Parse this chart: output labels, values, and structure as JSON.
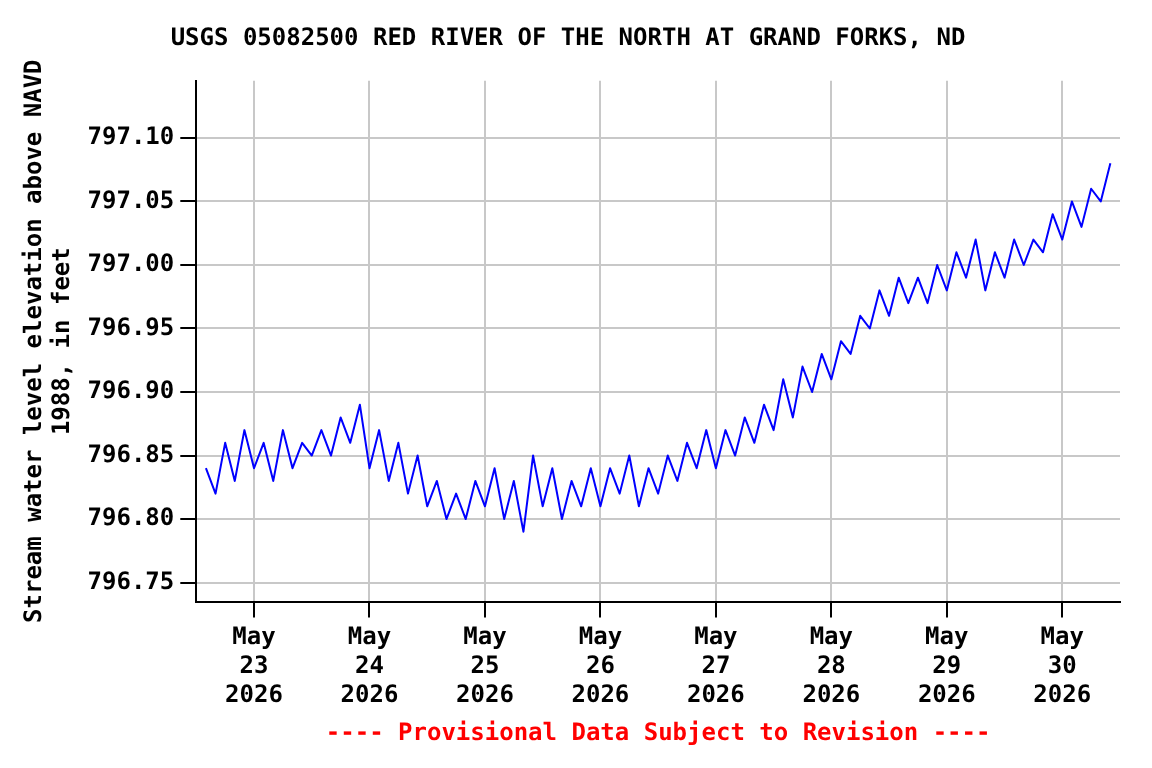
{
  "chart_data": {
    "type": "line",
    "title": "USGS 05082500 RED RIVER OF THE NORTH AT GRAND FORKS, ND",
    "ylabel": "Stream water level elevation above NAVD\n1988, in feet",
    "annotations": [
      "---- Provisional Data Subject to Revision ----"
    ],
    "xlim": [
      "2026-05-22T12:00",
      "2026-05-30T12:00"
    ],
    "xticks": [
      {
        "value": "2026-05-23T00:00",
        "label": "May\n23\n2026"
      },
      {
        "value": "2026-05-24T00:00",
        "label": "May\n24\n2026"
      },
      {
        "value": "2026-05-25T00:00",
        "label": "May\n25\n2026"
      },
      {
        "value": "2026-05-26T00:00",
        "label": "May\n26\n2026"
      },
      {
        "value": "2026-05-27T00:00",
        "label": "May\n27\n2026"
      },
      {
        "value": "2026-05-28T00:00",
        "label": "May\n28\n2026"
      },
      {
        "value": "2026-05-29T00:00",
        "label": "May\n29\n2026"
      },
      {
        "value": "2026-05-30T00:00",
        "label": "May\n30\n2026"
      }
    ],
    "ylim": [
      796.735,
      797.145
    ],
    "yticks": [
      {
        "value": 796.75,
        "label": "796.75"
      },
      {
        "value": 796.8,
        "label": "796.80"
      },
      {
        "value": 796.85,
        "label": "796.85"
      },
      {
        "value": 796.9,
        "label": "796.90"
      },
      {
        "value": 796.95,
        "label": "796.95"
      },
      {
        "value": 797,
        "label": "797.00"
      },
      {
        "value": 797.05,
        "label": "797.05"
      },
      {
        "value": 797.1,
        "label": "797.10"
      }
    ],
    "grid": true,
    "legend": false,
    "marker": "none",
    "line_style": "solid",
    "x": [
      "2026-05-22T14:00",
      "2026-05-22T16:00",
      "2026-05-22T18:00",
      "2026-05-22T20:00",
      "2026-05-22T22:00",
      "2026-05-23T00:00",
      "2026-05-23T02:00",
      "2026-05-23T04:00",
      "2026-05-23T06:00",
      "2026-05-23T08:00",
      "2026-05-23T10:00",
      "2026-05-23T12:00",
      "2026-05-23T14:00",
      "2026-05-23T16:00",
      "2026-05-23T18:00",
      "2026-05-23T20:00",
      "2026-05-23T22:00",
      "2026-05-24T00:00",
      "2026-05-24T02:00",
      "2026-05-24T04:00",
      "2026-05-24T06:00",
      "2026-05-24T08:00",
      "2026-05-24T10:00",
      "2026-05-24T12:00",
      "2026-05-24T14:00",
      "2026-05-24T16:00",
      "2026-05-24T18:00",
      "2026-05-24T20:00",
      "2026-05-24T22:00",
      "2026-05-25T00:00",
      "2026-05-25T02:00",
      "2026-05-25T04:00",
      "2026-05-25T06:00",
      "2026-05-25T08:00",
      "2026-05-25T10:00",
      "2026-05-25T12:00",
      "2026-05-25T14:00",
      "2026-05-25T16:00",
      "2026-05-25T18:00",
      "2026-05-25T20:00",
      "2026-05-25T22:00",
      "2026-05-26T00:00",
      "2026-05-26T02:00",
      "2026-05-26T04:00",
      "2026-05-26T06:00",
      "2026-05-26T08:00",
      "2026-05-26T10:00",
      "2026-05-26T12:00",
      "2026-05-26T14:00",
      "2026-05-26T16:00",
      "2026-05-26T18:00",
      "2026-05-26T20:00",
      "2026-05-26T22:00",
      "2026-05-27T00:00",
      "2026-05-27T02:00",
      "2026-05-27T04:00",
      "2026-05-27T06:00",
      "2026-05-27T08:00",
      "2026-05-27T10:00",
      "2026-05-27T12:00",
      "2026-05-27T14:00",
      "2026-05-27T16:00",
      "2026-05-27T18:00",
      "2026-05-27T20:00",
      "2026-05-27T22:00",
      "2026-05-28T00:00",
      "2026-05-28T02:00",
      "2026-05-28T04:00",
      "2026-05-28T06:00",
      "2026-05-28T08:00",
      "2026-05-28T10:00",
      "2026-05-28T12:00",
      "2026-05-28T14:00",
      "2026-05-28T16:00",
      "2026-05-28T18:00",
      "2026-05-28T20:00",
      "2026-05-28T22:00",
      "2026-05-29T00:00",
      "2026-05-29T02:00",
      "2026-05-29T04:00",
      "2026-05-29T06:00",
      "2026-05-29T08:00",
      "2026-05-29T10:00",
      "2026-05-29T12:00",
      "2026-05-29T14:00",
      "2026-05-29T16:00",
      "2026-05-29T18:00",
      "2026-05-29T20:00",
      "2026-05-29T22:00",
      "2026-05-30T00:00",
      "2026-05-30T02:00",
      "2026-05-30T04:00",
      "2026-05-30T06:00",
      "2026-05-30T08:00",
      "2026-05-30T10:00"
    ],
    "series": [
      {
        "color": "#0000ff",
        "values": [
          796.84,
          796.82,
          796.86,
          796.83,
          796.87,
          796.84,
          796.86,
          796.83,
          796.87,
          796.84,
          796.86,
          796.85,
          796.87,
          796.85,
          796.88,
          796.86,
          796.89,
          796.84,
          796.87,
          796.83,
          796.86,
          796.82,
          796.85,
          796.81,
          796.83,
          796.8,
          796.82,
          796.8,
          796.83,
          796.81,
          796.84,
          796.8,
          796.83,
          796.79,
          796.85,
          796.81,
          796.84,
          796.8,
          796.83,
          796.81,
          796.84,
          796.81,
          796.84,
          796.82,
          796.85,
          796.81,
          796.84,
          796.82,
          796.85,
          796.83,
          796.86,
          796.84,
          796.87,
          796.84,
          796.87,
          796.85,
          796.88,
          796.86,
          796.89,
          796.87,
          796.91,
          796.88,
          796.92,
          796.9,
          796.93,
          796.91,
          796.94,
          796.93,
          796.96,
          796.95,
          796.98,
          796.96,
          796.99,
          796.97,
          796.99,
          796.97,
          797,
          796.98,
          797.01,
          796.99,
          797.02,
          796.98,
          797.01,
          796.99,
          797.02,
          797,
          797.02,
          797.01,
          797.04,
          797.02,
          797.05,
          797.03,
          797.06,
          797.05,
          797.08
        ]
      }
    ]
  }
}
